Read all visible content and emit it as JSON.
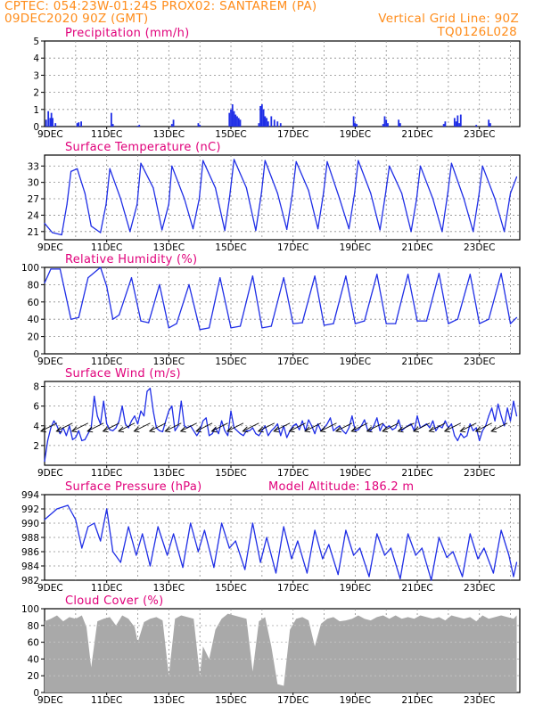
{
  "header": {
    "line1": "CPTEC:   054:23W-01:24S   PROX02: SANTAREM (PA)",
    "line2": "09DEC2020 90Z (GMT)",
    "grid_note": "Vertical Grid Line: 90Z",
    "code": "TQ0126L028"
  },
  "colors": {
    "header": "#ff8c1a",
    "title": "#e0007a",
    "series": "#1f2ee6",
    "cloud": "#a9a9a9",
    "grid": "#8c8c8c"
  },
  "x_axis": {
    "start_label": "9DEC",
    "tick_labels": [
      "11DEC",
      "13DEC",
      "15DEC",
      "17DEC",
      "19DEC",
      "21DEC",
      "23DEC"
    ],
    "tick_days": [
      2,
      4,
      6,
      8,
      10,
      12,
      14
    ],
    "day_range": [
      0,
      15.3
    ]
  },
  "chart_data": [
    {
      "type": "bar",
      "title": "Precipitation (mm/h)",
      "ylim": [
        0,
        5
      ],
      "yticks": [
        0,
        1,
        2,
        3,
        4,
        5
      ],
      "x": [
        0.05,
        0.12,
        0.18,
        0.22,
        0.26,
        0.35,
        1.05,
        1.1,
        1.18,
        2.15,
        2.2,
        3.0,
        3.05,
        4.1,
        4.15,
        4.95,
        5.0,
        5.95,
        6.0,
        6.05,
        6.1,
        6.15,
        6.2,
        6.25,
        6.3,
        6.9,
        6.95,
        7.0,
        7.05,
        7.1,
        7.15,
        7.2,
        7.3,
        7.4,
        7.5,
        7.6,
        9.95,
        10.0,
        10.05,
        10.9,
        10.95,
        11.0,
        11.05,
        11.4,
        11.45,
        12.85,
        12.9,
        13.2,
        13.25,
        13.3,
        13.35,
        13.4,
        13.9,
        14.3,
        14.35
      ],
      "values": [
        0.4,
        0.9,
        0.5,
        0.8,
        0.5,
        0.2,
        0.2,
        0.25,
        0.3,
        0.8,
        0.15,
        0.05,
        0.1,
        0.15,
        0.4,
        0.2,
        0.1,
        0.8,
        1.0,
        1.3,
        0.9,
        0.7,
        0.6,
        0.5,
        0.4,
        0.2,
        1.2,
        1.3,
        1.0,
        0.6,
        0.5,
        0.3,
        0.6,
        0.4,
        0.3,
        0.2,
        0.6,
        0.2,
        0.15,
        0.15,
        0.6,
        0.4,
        0.2,
        0.4,
        0.2,
        0.15,
        0.3,
        0.5,
        0.3,
        0.65,
        0.2,
        0.7,
        0.1,
        0.4,
        0.2
      ]
    },
    {
      "type": "line",
      "title": "Surface Temperature (nC)",
      "ylim": [
        19.5,
        35
      ],
      "yticks": [
        21,
        24,
        27,
        30,
        33
      ],
      "x": [
        0.0,
        0.25,
        0.55,
        0.72,
        0.85,
        1.05,
        1.3,
        1.5,
        1.8,
        1.98,
        2.1,
        2.45,
        2.75,
        2.98,
        3.1,
        3.5,
        3.78,
        4.0,
        4.1,
        4.5,
        4.78,
        4.98,
        5.1,
        5.5,
        5.8,
        5.95,
        6.1,
        6.5,
        6.8,
        6.98,
        7.1,
        7.5,
        7.8,
        7.98,
        8.1,
        8.5,
        8.8,
        8.98,
        9.1,
        9.5,
        9.8,
        9.98,
        10.1,
        10.5,
        10.8,
        10.98,
        11.1,
        11.5,
        11.8,
        11.98,
        12.1,
        12.5,
        12.8,
        12.98,
        13.1,
        13.5,
        13.8,
        13.98,
        14.1,
        14.5,
        14.8,
        15.0,
        15.2
      ],
      "values": [
        22.5,
        20.8,
        20.4,
        26.0,
        32.0,
        32.5,
        28.0,
        22.0,
        20.8,
        26.0,
        32.5,
        27.0,
        21.0,
        26.0,
        33.5,
        29.0,
        21.3,
        26.0,
        33.0,
        27.0,
        21.5,
        27.0,
        34.0,
        29.0,
        21.2,
        27.0,
        34.2,
        29.0,
        21.2,
        28.0,
        34.0,
        28.0,
        21.4,
        28.0,
        33.8,
        28.5,
        21.5,
        28.0,
        33.8,
        27.0,
        21.5,
        28.0,
        34.0,
        28.0,
        21.3,
        28.0,
        33.0,
        28.0,
        21.0,
        27.0,
        33.0,
        27.0,
        21.0,
        28.0,
        33.5,
        27.0,
        21.0,
        27.5,
        33.0,
        27.0,
        21.0,
        28.0,
        31.0
      ]
    },
    {
      "type": "line",
      "title": "Relative Humidity (%)",
      "ylim": [
        0,
        100
      ],
      "yticks": [
        0,
        20,
        40,
        60,
        80,
        100
      ],
      "x": [
        0.0,
        0.2,
        0.5,
        0.85,
        1.1,
        1.4,
        1.8,
        2.0,
        2.2,
        2.4,
        2.8,
        3.1,
        3.35,
        3.7,
        4.0,
        4.25,
        4.65,
        5.0,
        5.3,
        5.65,
        6.0,
        6.3,
        6.7,
        7.0,
        7.3,
        7.7,
        8.0,
        8.3,
        8.7,
        9.0,
        9.3,
        9.7,
        10.0,
        10.3,
        10.7,
        11.0,
        11.3,
        11.7,
        12.0,
        12.3,
        12.7,
        13.0,
        13.3,
        13.7,
        14.0,
        14.3,
        14.7,
        15.0,
        15.2
      ],
      "values": [
        82,
        98,
        98,
        40,
        42,
        88,
        100,
        78,
        40,
        45,
        88,
        38,
        36,
        80,
        30,
        35,
        80,
        28,
        30,
        88,
        30,
        32,
        90,
        30,
        32,
        88,
        35,
        36,
        90,
        33,
        35,
        90,
        35,
        38,
        92,
        35,
        35,
        92,
        38,
        38,
        93,
        35,
        40,
        92,
        35,
        40,
        93,
        35,
        42
      ]
    },
    {
      "type": "line",
      "title": "Surface Wind (m/s)",
      "ylim": [
        0,
        8.5
      ],
      "yticks": [
        2,
        4,
        6,
        8
      ],
      "x": [
        0.0,
        0.1,
        0.2,
        0.3,
        0.4,
        0.5,
        0.6,
        0.7,
        0.8,
        0.9,
        1.0,
        1.1,
        1.2,
        1.3,
        1.4,
        1.5,
        1.6,
        1.7,
        1.8,
        1.9,
        2.0,
        2.1,
        2.2,
        2.3,
        2.4,
        2.5,
        2.6,
        2.7,
        2.8,
        2.9,
        3.0,
        3.1,
        3.2,
        3.3,
        3.4,
        3.5,
        3.6,
        3.7,
        3.8,
        3.9,
        4.0,
        4.1,
        4.2,
        4.3,
        4.4,
        4.5,
        4.6,
        4.7,
        4.8,
        4.9,
        5.0,
        5.1,
        5.2,
        5.3,
        5.4,
        5.5,
        5.6,
        5.7,
        5.8,
        5.9,
        6.0,
        6.1,
        6.2,
        6.3,
        6.4,
        6.5,
        6.6,
        6.7,
        6.8,
        6.9,
        7.0,
        7.1,
        7.2,
        7.3,
        7.4,
        7.5,
        7.6,
        7.7,
        7.8,
        7.9,
        8.0,
        8.1,
        8.2,
        8.3,
        8.4,
        8.5,
        8.6,
        8.7,
        8.8,
        8.9,
        9.0,
        9.1,
        9.2,
        9.3,
        9.4,
        9.5,
        9.6,
        9.7,
        9.8,
        9.9,
        10.0,
        10.1,
        10.2,
        10.3,
        10.4,
        10.5,
        10.6,
        10.7,
        10.8,
        10.9,
        11.0,
        11.1,
        11.2,
        11.3,
        11.4,
        11.5,
        11.6,
        11.7,
        11.8,
        11.9,
        12.0,
        12.1,
        12.2,
        12.3,
        12.4,
        12.5,
        12.6,
        12.7,
        12.8,
        12.9,
        13.0,
        13.1,
        13.2,
        13.3,
        13.4,
        13.5,
        13.6,
        13.7,
        13.8,
        13.9,
        14.0,
        14.1,
        14.2,
        14.3,
        14.4,
        14.5,
        14.6,
        14.7,
        14.8,
        14.9,
        15.0,
        15.1,
        15.2
      ],
      "values": [
        0.4,
        2.5,
        3.8,
        4.5,
        4.0,
        3.2,
        3.8,
        3.0,
        4.0,
        2.6,
        2.8,
        3.5,
        2.5,
        2.6,
        3.2,
        3.8,
        7.0,
        5.0,
        4.2,
        6.5,
        4.2,
        3.6,
        3.5,
        3.8,
        4.5,
        6.0,
        4.2,
        3.8,
        4.5,
        5.0,
        4.2,
        5.5,
        5.0,
        7.5,
        7.8,
        5.5,
        3.8,
        3.5,
        3.4,
        4.5,
        5.5,
        6.0,
        3.5,
        4.0,
        6.5,
        4.0,
        3.8,
        4.0,
        3.5,
        3.0,
        3.5,
        4.5,
        4.8,
        3.0,
        3.2,
        3.8,
        3.2,
        4.5,
        3.5,
        3.0,
        5.5,
        3.8,
        3.5,
        3.2,
        3.0,
        3.5,
        3.5,
        3.8,
        3.2,
        3.0,
        3.5,
        4.0,
        3.0,
        3.5,
        3.8,
        4.2,
        3.0,
        4.0,
        2.8,
        3.5,
        4.0,
        4.2,
        3.6,
        4.5,
        3.5,
        4.6,
        4.0,
        3.2,
        4.2,
        3.5,
        3.8,
        4.2,
        4.8,
        3.5,
        3.8,
        4.0,
        3.5,
        3.2,
        3.8,
        5.0,
        3.5,
        3.6,
        4.0,
        4.6,
        3.6,
        3.5,
        4.0,
        4.8,
        3.5,
        4.2,
        3.8,
        4.0,
        3.6,
        3.8,
        4.6,
        3.5,
        3.8,
        4.0,
        4.2,
        3.5,
        5.0,
        3.8,
        4.0,
        4.2,
        3.8,
        4.5,
        3.5,
        4.0,
        3.8,
        4.5,
        3.8,
        4.2,
        3.0,
        2.5,
        3.2,
        2.8,
        3.0,
        4.2,
        3.5,
        3.8,
        2.5,
        3.5,
        4.0,
        5.0,
        5.8,
        4.5,
        6.2,
        5.0,
        4.0,
        5.8,
        4.5,
        6.5,
        5.0
      ]
    },
    {
      "type": "line",
      "title": "Surface Pressure (hPa)",
      "annotation": "Model Altitude: 186.2 m",
      "ylim": [
        982,
        994
      ],
      "yticks": [
        982,
        984,
        986,
        988,
        990,
        992,
        994
      ],
      "x": [
        0.0,
        0.4,
        0.75,
        1.0,
        1.2,
        1.4,
        1.6,
        1.8,
        2.0,
        2.2,
        2.45,
        2.7,
        2.95,
        3.15,
        3.4,
        3.65,
        3.95,
        4.15,
        4.45,
        4.7,
        4.95,
        5.15,
        5.45,
        5.7,
        5.95,
        6.15,
        6.45,
        6.7,
        6.95,
        7.15,
        7.45,
        7.7,
        7.95,
        8.15,
        8.45,
        8.7,
        8.95,
        9.15,
        9.45,
        9.7,
        9.95,
        10.15,
        10.45,
        10.7,
        10.95,
        11.15,
        11.45,
        11.7,
        11.95,
        12.15,
        12.45,
        12.7,
        12.95,
        13.15,
        13.45,
        13.7,
        13.95,
        14.15,
        14.45,
        14.7,
        14.95,
        15.1,
        15.2
      ],
      "values": [
        990.5,
        992.0,
        992.5,
        990.5,
        986.5,
        989.5,
        990.0,
        987.5,
        992.0,
        986.0,
        984.5,
        989.5,
        985.5,
        988.5,
        984.0,
        989.5,
        985.5,
        988.5,
        983.8,
        990.0,
        986.0,
        989.0,
        983.8,
        990.0,
        986.5,
        987.5,
        983.5,
        990.0,
        984.5,
        988.0,
        983.0,
        989.5,
        985.0,
        987.5,
        983.0,
        989.0,
        985.0,
        987.0,
        982.8,
        989.0,
        985.5,
        986.5,
        982.5,
        988.5,
        985.5,
        986.5,
        982.2,
        988.5,
        985.5,
        986.5,
        982.0,
        988.0,
        985.2,
        986.0,
        982.5,
        988.5,
        985.0,
        986.5,
        983.0,
        989.0,
        985.5,
        982.5,
        984.5
      ]
    },
    {
      "type": "area",
      "title": "Cloud Cover (%)",
      "ylim": [
        0,
        100
      ],
      "yticks": [
        0,
        20,
        40,
        60,
        80,
        100
      ],
      "x": [
        0.0,
        0.2,
        0.4,
        0.6,
        0.8,
        1.0,
        1.2,
        1.35,
        1.5,
        1.7,
        1.9,
        2.1,
        2.3,
        2.5,
        2.7,
        2.9,
        3.0,
        3.2,
        3.4,
        3.6,
        3.8,
        4.0,
        4.2,
        4.4,
        4.6,
        4.8,
        5.0,
        5.1,
        5.3,
        5.5,
        5.7,
        5.9,
        6.1,
        6.3,
        6.5,
        6.7,
        6.9,
        7.1,
        7.3,
        7.5,
        7.7,
        7.9,
        8.1,
        8.3,
        8.5,
        8.7,
        8.9,
        9.1,
        9.3,
        9.5,
        9.7,
        9.9,
        10.1,
        10.3,
        10.5,
        10.7,
        10.9,
        11.1,
        11.3,
        11.5,
        11.7,
        11.9,
        12.1,
        12.3,
        12.5,
        12.7,
        12.9,
        13.1,
        13.3,
        13.5,
        13.7,
        13.9,
        14.1,
        14.3,
        14.5,
        14.7,
        14.9,
        15.1,
        15.2
      ],
      "values": [
        85,
        88,
        92,
        85,
        90,
        88,
        92,
        78,
        30,
        85,
        88,
        90,
        80,
        92,
        88,
        78,
        60,
        84,
        88,
        90,
        86,
        20,
        88,
        92,
        90,
        88,
        20,
        55,
        40,
        75,
        88,
        94,
        92,
        90,
        88,
        25,
        85,
        90,
        55,
        10,
        8,
        75,
        88,
        90,
        86,
        55,
        82,
        88,
        90,
        85,
        86,
        88,
        92,
        88,
        86,
        90,
        92,
        88,
        92,
        88,
        90,
        88,
        92,
        90,
        88,
        90,
        86,
        92,
        90,
        88,
        90,
        85,
        92,
        88,
        90,
        92,
        90,
        88,
        92
      ]
    }
  ]
}
